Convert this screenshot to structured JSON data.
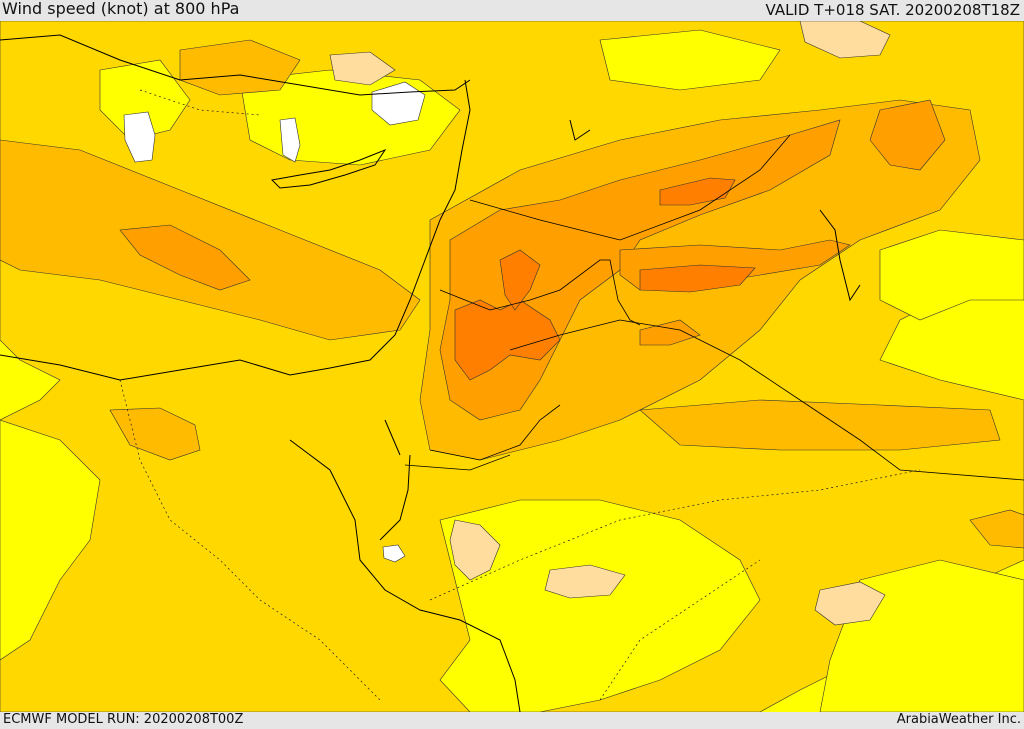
{
  "header": {
    "title": "Wind speed (knot) at 800 hPa",
    "valid_time": "VALID T+018 SAT. 20200208T18Z"
  },
  "footer": {
    "model_run": "ECMWF MODEL RUN: 20200208T00Z",
    "credit": "ArabiaWeather Inc."
  },
  "map": {
    "field": "wind-speed",
    "level_hpa": 800,
    "region": "Eastern Mediterranean / Levant / Northern Arabia",
    "colors": {
      "lightest": "#ffffff",
      "peach": "#ffdd9f",
      "yellow": "#ffff00",
      "gold": "#ffd800",
      "amber": "#ffbb00",
      "orange": "#ff9f00",
      "dark_orange": "#ff7f00",
      "coastline": "#000000",
      "contour": "#333333"
    }
  }
}
